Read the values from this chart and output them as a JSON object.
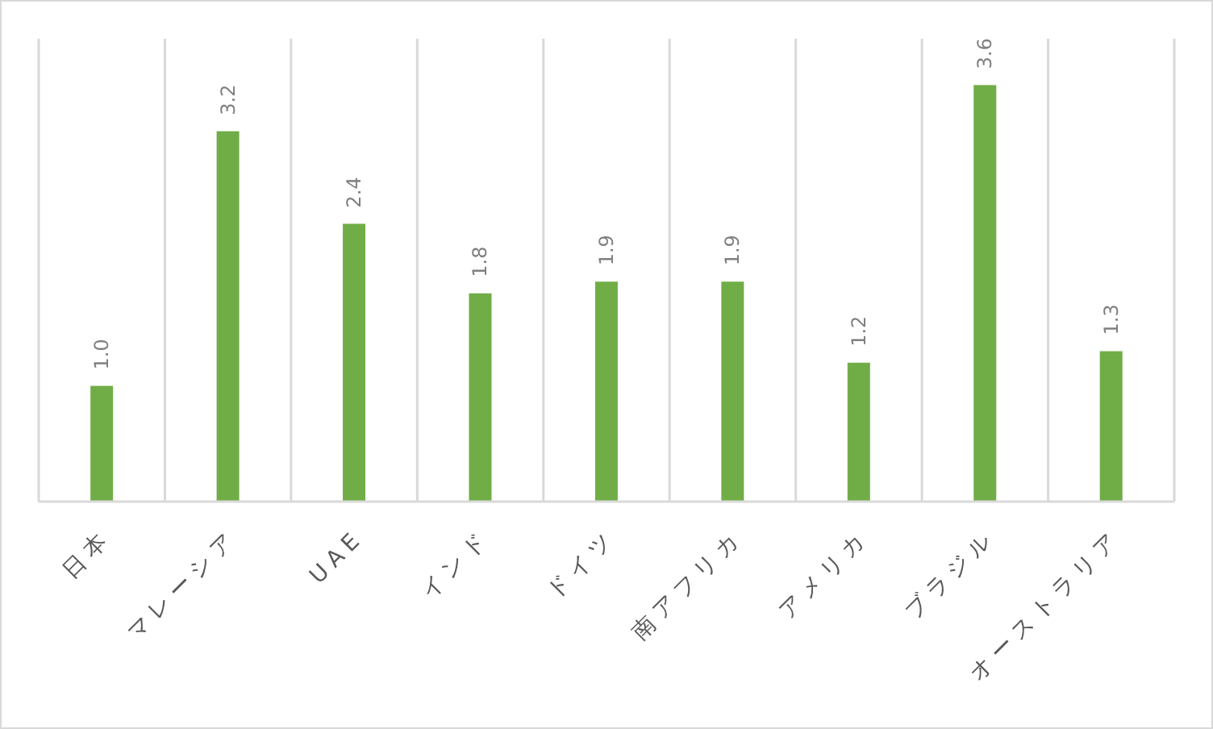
{
  "chart_data": {
    "type": "bar",
    "categories": [
      "日本",
      "マレーシア",
      "UAE",
      "インド",
      "ドイツ",
      "南アフリカ",
      "アメリカ",
      "ブラジル",
      "オーストラリア"
    ],
    "values": [
      1.0,
      3.2,
      2.4,
      1.8,
      1.9,
      1.9,
      1.2,
      3.6,
      1.3
    ],
    "value_labels": [
      "1.0",
      "3.2",
      "2.4",
      "1.8",
      "1.9",
      "1.9",
      "1.2",
      "3.6",
      "1.3"
    ],
    "color": "#70ad47",
    "ylim": [
      0,
      4
    ],
    "grid": "x",
    "tick_labels": "x"
  }
}
